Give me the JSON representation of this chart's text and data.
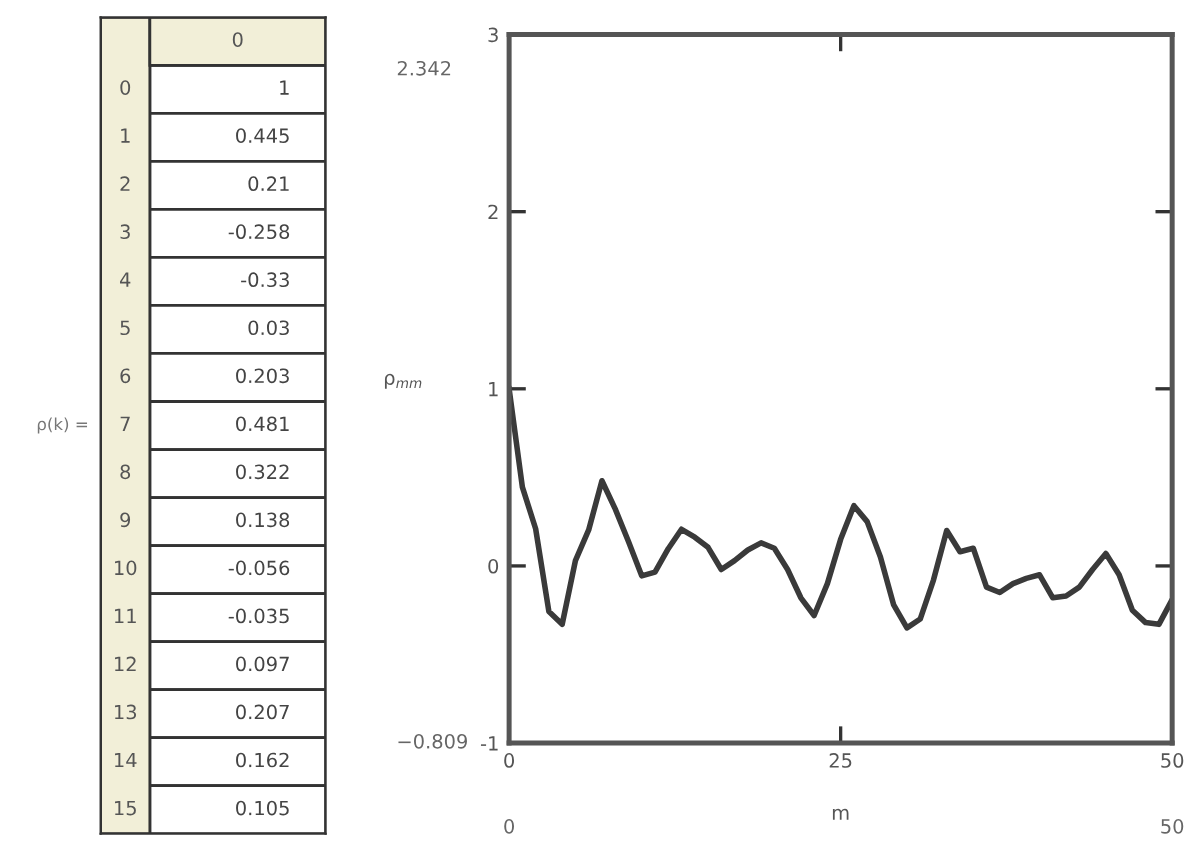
{
  "chart_data": [
    {
      "type": "heatmap",
      "ylabel": "ρ(k) =",
      "categories": [
        "0"
      ],
      "y_categories": [
        "0",
        "1",
        "2",
        "3",
        "4",
        "5",
        "6",
        "7",
        "8",
        "9",
        "10",
        "11",
        "12",
        "13",
        "14",
        "15"
      ],
      "cells": [
        [
          1
        ],
        [
          0.445
        ],
        [
          0.21
        ],
        [
          -0.258
        ],
        [
          -0.33
        ],
        [
          0.03
        ],
        [
          0.203
        ],
        [
          0.481
        ],
        [
          0.322
        ],
        [
          0.138
        ],
        [
          -0.056
        ],
        [
          -0.035
        ],
        [
          0.097
        ],
        [
          0.207
        ],
        [
          0.162
        ],
        [
          0.105
        ]
      ],
      "data_labels": true
    },
    {
      "type": "line",
      "xlabel": "m",
      "ylabel": "ρ$_{mm}$",
      "xlim": [
        0,
        50
      ],
      "ylim": [
        -1,
        3
      ],
      "xticks": [
        0,
        25,
        50
      ],
      "yticks": [
        -1,
        0,
        1,
        2,
        3
      ],
      "grid": false,
      "annotations": [
        "2.342",
        "−0.809",
        "0",
        "50"
      ],
      "x": [
        0,
        1,
        2,
        3,
        4,
        5,
        6,
        7,
        8,
        9,
        10,
        11,
        12,
        13,
        14,
        15,
        16,
        17,
        18,
        19,
        20,
        21,
        22,
        23,
        24,
        25,
        26,
        27,
        28,
        29,
        30,
        31,
        32,
        33,
        34,
        35,
        36,
        37,
        38,
        39,
        40,
        41,
        42,
        43,
        44,
        45,
        46,
        47,
        48,
        49,
        50
      ],
      "series": [
        {
          "color": "#3a3a3a",
          "values": [
            1,
            0.445,
            0.21,
            -0.258,
            -0.33,
            0.03,
            0.203,
            0.481,
            0.322,
            0.138,
            -0.056,
            -0.035,
            0.097,
            0.207,
            0.162,
            0.105,
            -0.02,
            0.03,
            0.09,
            0.13,
            0.1,
            -0.02,
            -0.18,
            -0.28,
            -0.1,
            0.15,
            0.34,
            0.25,
            0.05,
            -0.22,
            -0.35,
            -0.3,
            -0.08,
            0.2,
            0.08,
            0.1,
            -0.12,
            -0.15,
            -0.1,
            -0.07,
            -0.05,
            -0.18,
            -0.17,
            -0.12,
            -0.02,
            0.07,
            -0.05,
            -0.25,
            -0.32,
            -0.33,
            -0.19
          ]
        }
      ]
    }
  ]
}
